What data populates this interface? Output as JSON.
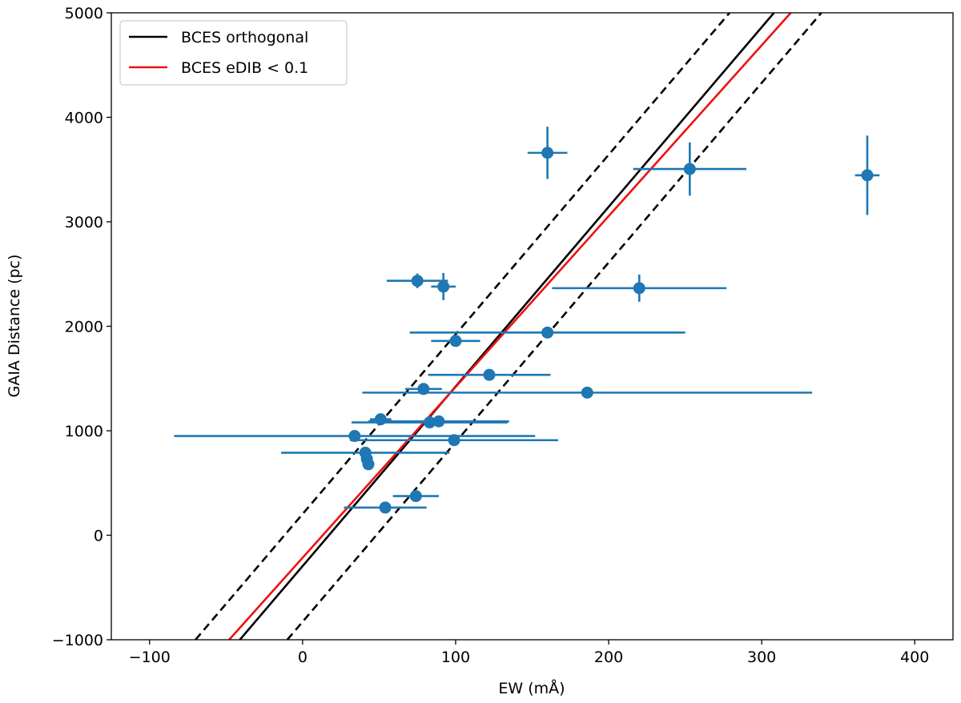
{
  "chart_data": {
    "type": "scatter",
    "xlabel": "EW (mÅ)",
    "ylabel": "GAIA Distance (pc)",
    "xlim": [
      -125,
      425
    ],
    "ylim": [
      -1000,
      5000
    ],
    "xticks": [
      -100,
      0,
      100,
      200,
      300,
      400
    ],
    "yticks": [
      -1000,
      0,
      1000,
      2000,
      3000,
      4000,
      5000
    ],
    "xtick_labels": [
      "−100",
      "0",
      "100",
      "200",
      "300",
      "400"
    ],
    "ytick_labels": [
      "−1000",
      "0",
      "1000",
      "2000",
      "3000",
      "4000",
      "5000"
    ],
    "legend": {
      "placement": "top-left",
      "entries": [
        {
          "label": "BCES orthogonal",
          "color": "#000000"
        },
        {
          "label": "BCES eDIB < 0.1",
          "color": "#ee1111"
        }
      ]
    },
    "colors": {
      "points": "#1f77b4",
      "orthogonal": "#000000",
      "edib": "#ee1111"
    },
    "lines": [
      {
        "name": "BCES orthogonal",
        "style": "solid",
        "color": "#000000",
        "x": [
          -41,
          308
        ],
        "y": [
          -1000,
          5000
        ]
      },
      {
        "name": "BCES eDIB < 0.1",
        "style": "solid",
        "color": "#ee1111",
        "x": [
          -48,
          319
        ],
        "y": [
          -1000,
          5000
        ]
      },
      {
        "name": "upper bound",
        "style": "dashed",
        "color": "#000000",
        "x": [
          -70,
          279
        ],
        "y": [
          -1000,
          5000
        ]
      },
      {
        "name": "lower bound",
        "style": "dashed",
        "color": "#000000",
        "x": [
          -10,
          339
        ],
        "y": [
          -1000,
          5000
        ]
      }
    ],
    "points": [
      {
        "x": 160,
        "y": 3660,
        "xerr": 13,
        "yerr": 250
      },
      {
        "x": 253,
        "y": 3505,
        "xerr": 37,
        "yerr": 255
      },
      {
        "x": 369,
        "y": 3445,
        "xerr": 8,
        "yerr": 380
      },
      {
        "x": 75,
        "y": 2435,
        "xerr": 20,
        "yerr": 70
      },
      {
        "x": 92,
        "y": 2380,
        "xerr": 8,
        "yerr": 130
      },
      {
        "x": 220,
        "y": 2365,
        "xerr": 57,
        "yerr": 130
      },
      {
        "x": 160,
        "y": 1940,
        "xerr": 90,
        "yerr": 0
      },
      {
        "x": 100,
        "y": 1860,
        "xerr": 16,
        "yerr": 0
      },
      {
        "x": 122,
        "y": 1535,
        "xerr": 40,
        "yerr": 0
      },
      {
        "x": 79,
        "y": 1400,
        "xerr": 12,
        "yerr": 0
      },
      {
        "x": 186,
        "y": 1365,
        "xerr": 147,
        "yerr": 0
      },
      {
        "x": 51,
        "y": 1110,
        "xerr": 7,
        "yerr": 0
      },
      {
        "x": 83,
        "y": 1080,
        "xerr": 51,
        "yerr": 0
      },
      {
        "x": 89,
        "y": 1090,
        "xerr": 46,
        "yerr": 0
      },
      {
        "x": 34,
        "y": 950,
        "xerr": 118,
        "yerr": 0
      },
      {
        "x": 99,
        "y": 910,
        "xerr": 68,
        "yerr": 0
      },
      {
        "x": 41,
        "y": 790,
        "xerr": 55,
        "yerr": 0
      },
      {
        "x": 42,
        "y": 730,
        "xerr": 3,
        "yerr": 0
      },
      {
        "x": 43,
        "y": 680,
        "xerr": 3,
        "yerr": 0
      },
      {
        "x": 74,
        "y": 375,
        "xerr": 15,
        "yerr": 0
      },
      {
        "x": 54,
        "y": 265,
        "xerr": 27,
        "yerr": 0
      }
    ]
  }
}
